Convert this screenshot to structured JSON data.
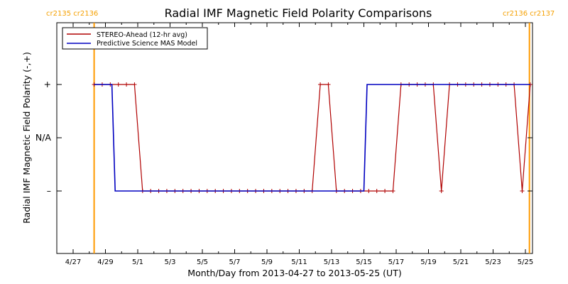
{
  "chart_data": {
    "type": "line",
    "title": "Radial IMF Magnetic Field Polarity Comparisons",
    "xlabel": "Month/Day from 2013-04-27 to 2013-05-25 (UT)",
    "ylabel": "Radial IMF Magnetic Field Polarity (-,+)",
    "x_start_date": "2013-04-27",
    "xlim_days": [
      0,
      29
    ],
    "x_ticks": [
      {
        "day": 0,
        "label": "4/27"
      },
      {
        "day": 2,
        "label": "4/29"
      },
      {
        "day": 4,
        "label": "5/1"
      },
      {
        "day": 6,
        "label": "5/3"
      },
      {
        "day": 8,
        "label": "5/5"
      },
      {
        "day": 10,
        "label": "5/7"
      },
      {
        "day": 12,
        "label": "5/9"
      },
      {
        "day": 14,
        "label": "5/11"
      },
      {
        "day": 16,
        "label": "5/13"
      },
      {
        "day": 18,
        "label": "5/15"
      },
      {
        "day": 20,
        "label": "5/17"
      },
      {
        "day": 22,
        "label": "5/19"
      },
      {
        "day": 24,
        "label": "5/21"
      },
      {
        "day": 26,
        "label": "5/23"
      },
      {
        "day": 28,
        "label": "5/25"
      }
    ],
    "ylim": [
      -2.1,
      2.1
    ],
    "y_ticks": [
      {
        "value": 1,
        "label": "+"
      },
      {
        "value": 0,
        "label": "N/A"
      },
      {
        "value": -1,
        "label": "–"
      }
    ],
    "carrington_markers": [
      {
        "day": 1.3,
        "label": "cr2135 cr2136"
      },
      {
        "day": 28.25,
        "label": "cr2136 cr2137"
      }
    ],
    "legend_position": "top-left",
    "series": [
      {
        "name": "STEREO-Ahead (12-hr avg)",
        "color": "#b00000",
        "markers": true,
        "x": [
          1.3,
          1.8,
          2.3,
          2.8,
          3.3,
          3.8,
          4.3,
          4.8,
          5.3,
          5.8,
          6.3,
          6.8,
          7.3,
          7.8,
          8.3,
          8.8,
          9.3,
          9.8,
          10.3,
          10.8,
          11.3,
          11.8,
          12.3,
          12.8,
          13.3,
          13.8,
          14.3,
          14.8,
          15.3,
          15.8,
          16.3,
          16.8,
          17.3,
          17.8,
          18.3,
          18.8,
          19.3,
          19.8,
          20.3,
          20.8,
          21.3,
          21.8,
          22.3,
          22.8,
          23.3,
          23.8,
          24.3,
          24.8,
          25.3,
          25.8,
          26.3,
          26.8,
          27.3,
          27.8,
          28.3
        ],
        "y": [
          1,
          1,
          1,
          1,
          1,
          1,
          -1,
          -1,
          -1,
          -1,
          -1,
          -1,
          -1,
          -1,
          -1,
          -1,
          -1,
          -1,
          -1,
          -1,
          -1,
          -1,
          -1,
          -1,
          -1,
          -1,
          -1,
          -1,
          1,
          1,
          -1,
          -1,
          -1,
          -1,
          -1,
          -1,
          -1,
          -1,
          1,
          1,
          1,
          1,
          1,
          -1,
          1,
          1,
          1,
          1,
          1,
          1,
          1,
          1,
          1,
          -1,
          1
        ]
      },
      {
        "name": "Predictive Science MAS Model",
        "color": "#0000c0",
        "markers": false,
        "x": [
          1.3,
          2.4,
          2.6,
          18.0,
          18.2,
          28.3
        ],
        "y": [
          1,
          1,
          -1,
          -1,
          1,
          1
        ]
      }
    ]
  },
  "colors": {
    "cr_line": "#ff9a00",
    "axis": "#000000"
  }
}
